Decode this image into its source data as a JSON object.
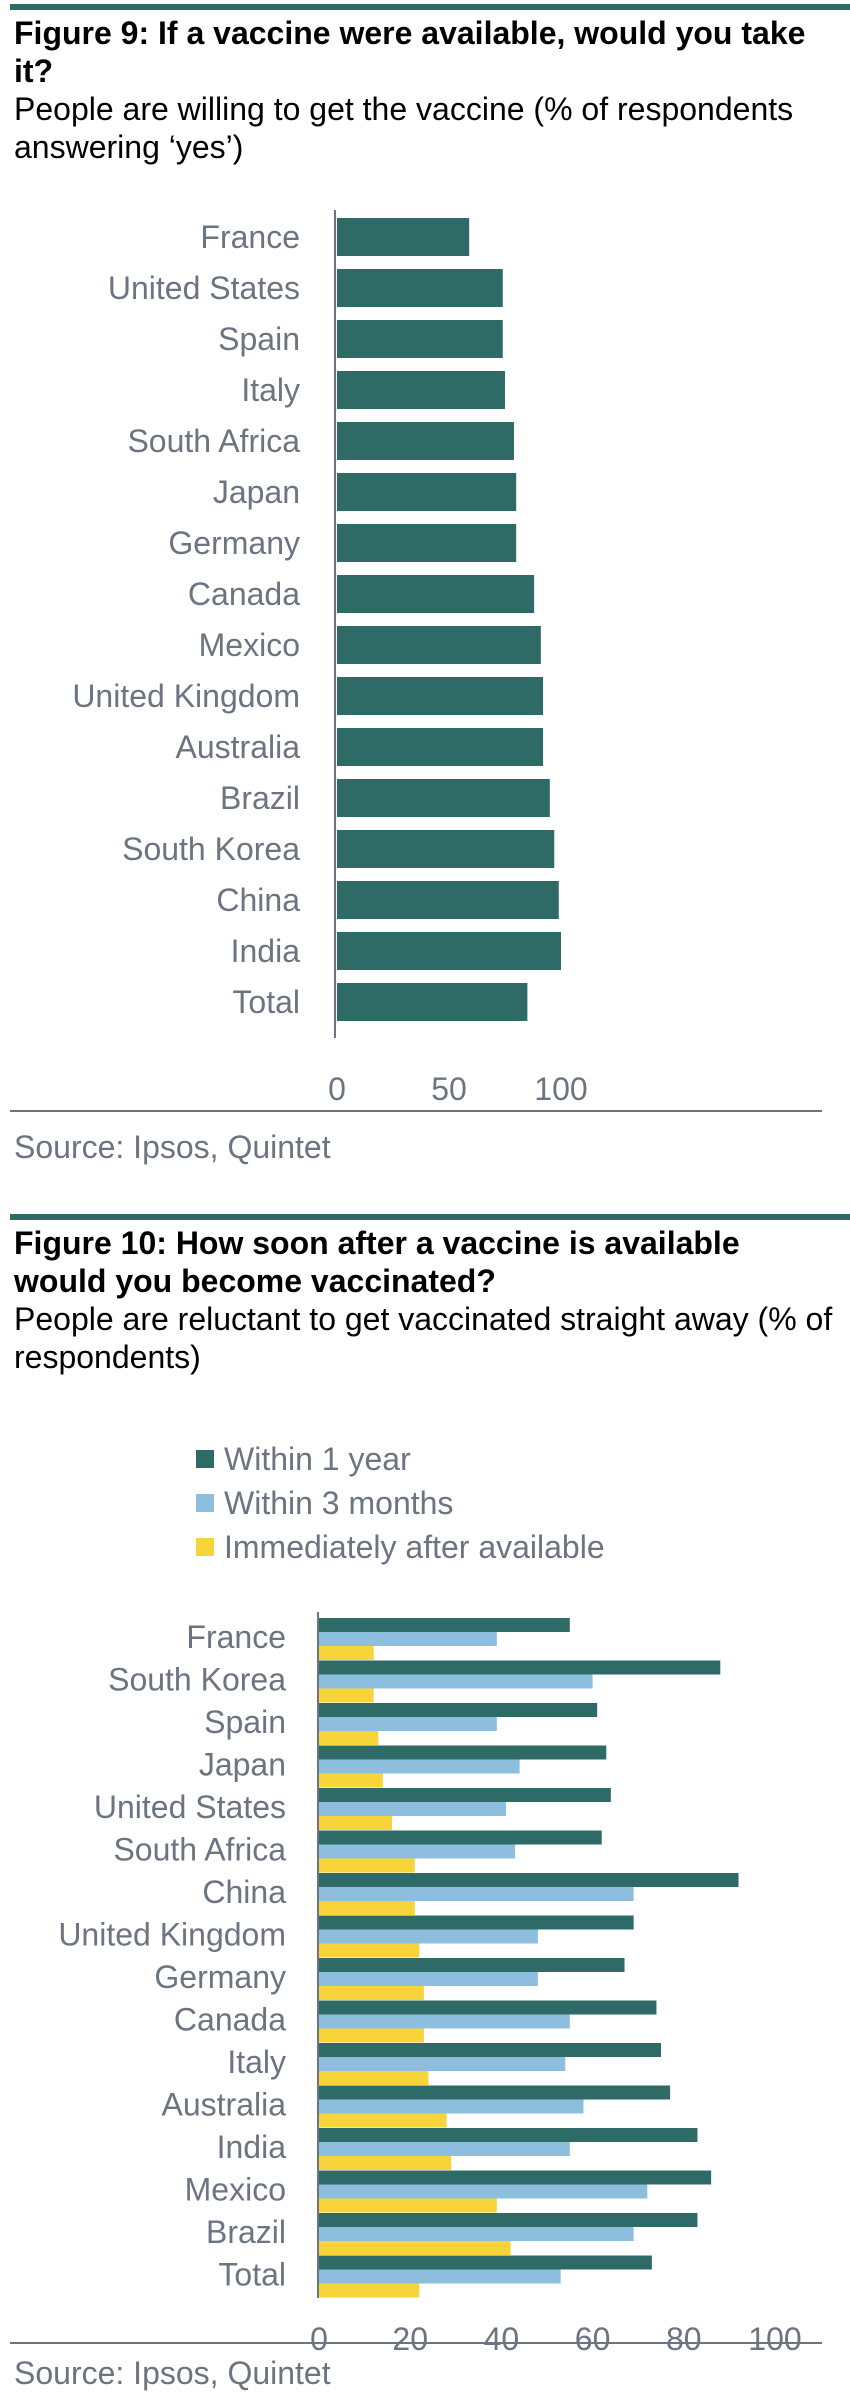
{
  "figure9": {
    "title": "Figure 9: If a vaccine were available, would you take it?",
    "subtitle": "People are willing to get the vaccine (% of respondents answering ‘yes’)",
    "source": "Source: Ipsos, Quintet"
  },
  "figure10": {
    "title": "Figure 10: How soon after a vaccine is available would you become vaccinated?",
    "subtitle": "People are reluctant to get vaccinated straight away (% of respondents)",
    "source": "Source: Ipsos, Quintet"
  },
  "colors": {
    "dark_teal": "#2e6b67",
    "light_blue": "#8dbedd",
    "yellow": "#f7d53a",
    "axis_gray": "#6b7480"
  },
  "chart_data": [
    {
      "type": "bar",
      "orientation": "horizontal",
      "categories": [
        "France",
        "United States",
        "Spain",
        "Italy",
        "South Africa",
        "Japan",
        "Germany",
        "Canada",
        "Mexico",
        "United Kingdom",
        "Australia",
        "Brazil",
        "South Korea",
        "China",
        "India",
        "Total"
      ],
      "values": [
        59,
        74,
        74,
        75,
        79,
        80,
        80,
        88,
        91,
        92,
        92,
        95,
        97,
        99,
        100,
        85
      ],
      "xlim": [
        0,
        120
      ],
      "xticks": [
        0,
        50,
        100
      ],
      "grid": false,
      "legend": false
    },
    {
      "type": "bar",
      "orientation": "horizontal",
      "categories": [
        "France",
        "South Korea",
        "Spain",
        "Japan",
        "United States",
        "South Africa",
        "China",
        "United Kingdom",
        "Germany",
        "Canada",
        "Italy",
        "Australia",
        "India",
        "Mexico",
        "Brazil",
        "Total"
      ],
      "series": [
        {
          "name": "Within 1 year",
          "values": [
            55,
            88,
            61,
            63,
            64,
            62,
            92,
            69,
            67,
            74,
            75,
            77,
            83,
            86,
            83,
            73
          ]
        },
        {
          "name": "Within 3 months",
          "values": [
            39,
            60,
            39,
            44,
            41,
            43,
            69,
            48,
            48,
            55,
            54,
            58,
            55,
            72,
            69,
            53
          ]
        },
        {
          "name": "Immediately after available",
          "values": [
            12,
            12,
            13,
            14,
            16,
            21,
            21,
            22,
            23,
            23,
            24,
            28,
            29,
            39,
            42,
            22
          ]
        }
      ],
      "xlim": [
        0,
        105
      ],
      "xticks": [
        0,
        20,
        40,
        60,
        80,
        100
      ],
      "grid": false,
      "legend": "top-left"
    }
  ]
}
